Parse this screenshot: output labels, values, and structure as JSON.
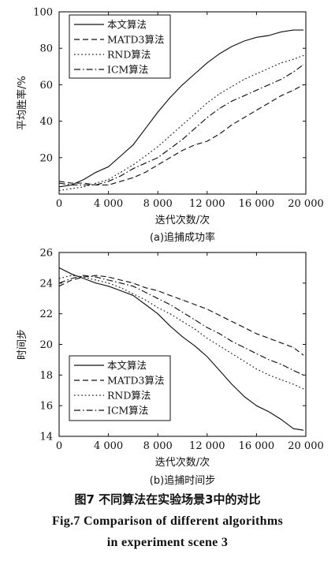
{
  "chart_data": [
    {
      "type": "line",
      "caption": "(a)追捕成功率",
      "xlabel": "迭代次数/次",
      "ylabel": "平均胜率/%",
      "xlim": [
        0,
        20000
      ],
      "ylim": [
        0,
        100
      ],
      "x_ticks": [
        0,
        4000,
        8000,
        12000,
        16000,
        20000
      ],
      "x_tick_labels": [
        "0",
        "4 000",
        "8 000",
        "12 000",
        "16 000",
        "20 000"
      ],
      "y_ticks": [
        20,
        40,
        60,
        80,
        100
      ],
      "y_tick_labels": [
        "20",
        "40",
        "60",
        "80",
        "100"
      ],
      "legend_position": "top-left",
      "grid": false,
      "x": [
        0,
        1000,
        2000,
        3000,
        4000,
        5000,
        6000,
        7000,
        8000,
        9000,
        10000,
        11000,
        12000,
        13000,
        14000,
        15000,
        16000,
        17000,
        18000,
        19000,
        19800
      ],
      "series": [
        {
          "name": "本文算法",
          "style": "solid",
          "values": [
            4,
            5,
            8,
            12,
            15,
            21,
            27,
            36,
            45,
            53,
            60,
            66,
            72,
            77,
            81,
            84,
            86,
            87,
            89,
            90,
            90
          ]
        },
        {
          "name": "MATD3算法",
          "style": "dashed",
          "values": [
            7,
            6,
            6,
            5,
            5,
            7,
            9,
            12,
            16,
            20,
            24,
            27,
            29,
            33,
            38,
            42,
            46,
            50,
            54,
            57,
            60
          ]
        },
        {
          "name": "RND算法",
          "style": "dotted",
          "values": [
            2,
            3,
            4,
            6,
            8,
            12,
            16,
            21,
            26,
            32,
            38,
            44,
            50,
            55,
            59,
            63,
            66,
            69,
            72,
            74,
            76
          ]
        },
        {
          "name": "ICM算法",
          "style": "dashdot",
          "values": [
            6,
            5,
            5,
            5,
            7,
            10,
            14,
            17,
            20,
            25,
            30,
            36,
            42,
            47,
            51,
            54,
            57,
            60,
            63,
            67,
            71
          ]
        }
      ]
    },
    {
      "type": "line",
      "caption": "(b)追捕时间步",
      "xlabel": "迭代次数/次",
      "ylabel": "时间步",
      "xlim": [
        0,
        20000
      ],
      "ylim": [
        14,
        26
      ],
      "x_ticks": [
        0,
        4000,
        8000,
        12000,
        16000,
        20000
      ],
      "x_tick_labels": [
        "0",
        "4 000",
        "8 000",
        "12 000",
        "16 000",
        "20 000"
      ],
      "y_ticks": [
        14,
        16,
        18,
        20,
        22,
        24,
        26
      ],
      "y_tick_labels": [
        "14",
        "16",
        "18",
        "20",
        "22",
        "24",
        "26"
      ],
      "legend_position": "bottom-left",
      "grid": false,
      "x": [
        0,
        1000,
        2000,
        3000,
        4000,
        5000,
        6000,
        7000,
        8000,
        9000,
        10000,
        11000,
        12000,
        13000,
        14000,
        15000,
        16000,
        17000,
        18000,
        19000,
        19800
      ],
      "series": [
        {
          "name": "本文算法",
          "style": "solid",
          "values": [
            25,
            24.6,
            24.3,
            24.0,
            23.8,
            23.5,
            23.2,
            22.6,
            22.0,
            21.2,
            20.5,
            19.9,
            19.2,
            18.3,
            17.4,
            16.6,
            16.0,
            15.6,
            15.1,
            14.5,
            14.4
          ]
        },
        {
          "name": "MATD3算法",
          "style": "dashed",
          "values": [
            23.8,
            24.2,
            24.4,
            24.5,
            24.4,
            24.2,
            24.0,
            23.7,
            23.5,
            23.2,
            22.9,
            22.6,
            22.3,
            21.9,
            21.5,
            21.1,
            20.7,
            20.4,
            20.1,
            19.8,
            19.3
          ]
        },
        {
          "name": "RND算法",
          "style": "dotted",
          "values": [
            24.3,
            24.5,
            24.4,
            24.2,
            24.0,
            23.7,
            23.3,
            22.9,
            22.4,
            22.0,
            21.5,
            21.0,
            20.4,
            19.9,
            19.4,
            18.9,
            18.4,
            18.0,
            17.7,
            17.4,
            17.1
          ]
        },
        {
          "name": "ICM算法",
          "style": "dashdot",
          "values": [
            24.0,
            24.3,
            24.5,
            24.4,
            24.2,
            24.0,
            23.8,
            23.4,
            23.0,
            22.6,
            22.1,
            21.6,
            21.1,
            20.7,
            20.2,
            19.8,
            19.4,
            19.0,
            18.7,
            18.3,
            18.0
          ]
        }
      ]
    }
  ],
  "figure": {
    "caption_cn": "图7   不同算法在实验场景3中的对比",
    "caption_en_line1": "Fig.7    Comparison of different algorithms",
    "caption_en_line2": "in experiment scene 3"
  }
}
